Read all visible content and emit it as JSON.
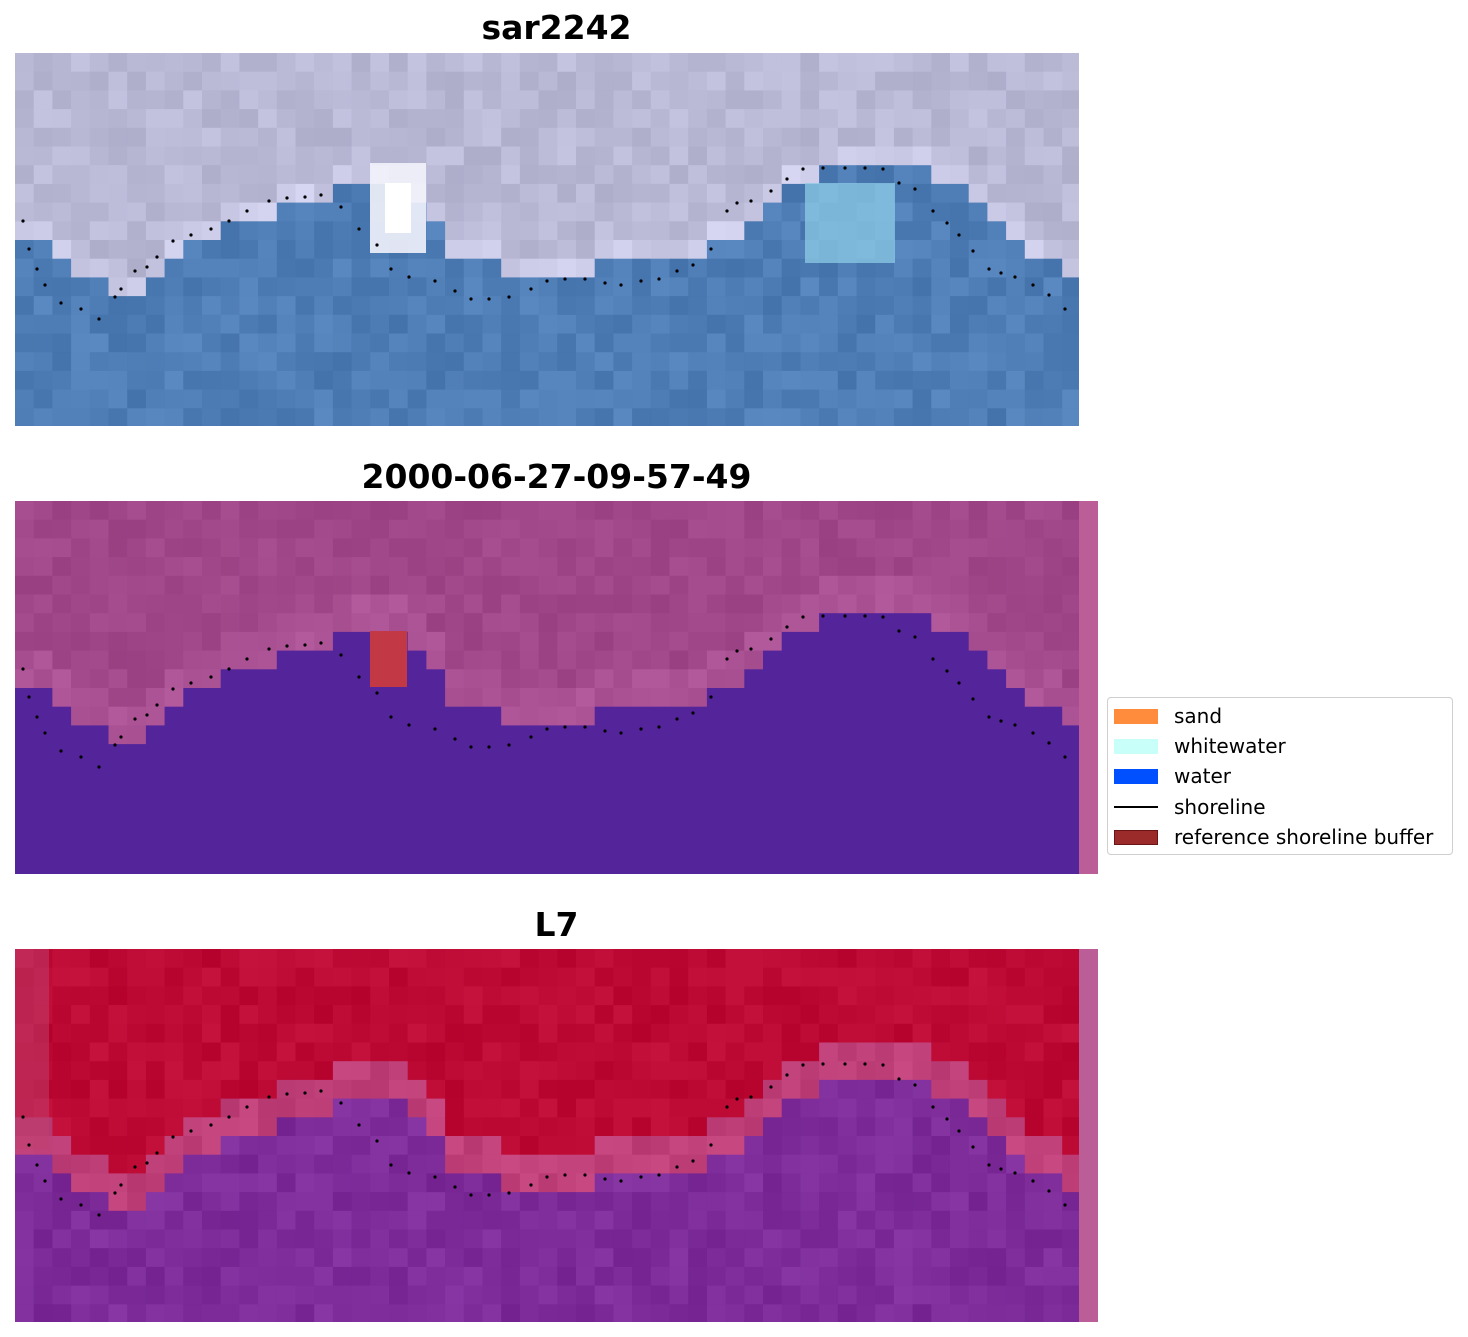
{
  "panels": [
    {
      "title": "sar2242",
      "kind": "rgb"
    },
    {
      "title": "2000-06-27-09-57-49",
      "kind": "classified"
    },
    {
      "title": "L7",
      "kind": "mndwi"
    }
  ],
  "legend": {
    "items": [
      {
        "label": "sand",
        "color": "#ff8c3c",
        "type": "patch"
      },
      {
        "label": "whitewater",
        "color": "#c8fff8",
        "type": "patch"
      },
      {
        "label": "water",
        "color": "#0050ff",
        "type": "patch"
      },
      {
        "label": "shoreline",
        "color": "#000000",
        "type": "line"
      },
      {
        "label": "reference shoreline buffer",
        "color": "#9b2a2a",
        "type": "patch"
      }
    ]
  },
  "colors": {
    "rgb_land": "#b9b9d6",
    "rgb_water": "#4f7db5",
    "classified_land": "#a0478a",
    "classified_water": "#54249b",
    "classified_buffer": "#b8b8d6",
    "mndwi_land": "#bd0a35",
    "mndwi_water": "#7d2c9a",
    "edge_band": "#bb5e98"
  }
}
